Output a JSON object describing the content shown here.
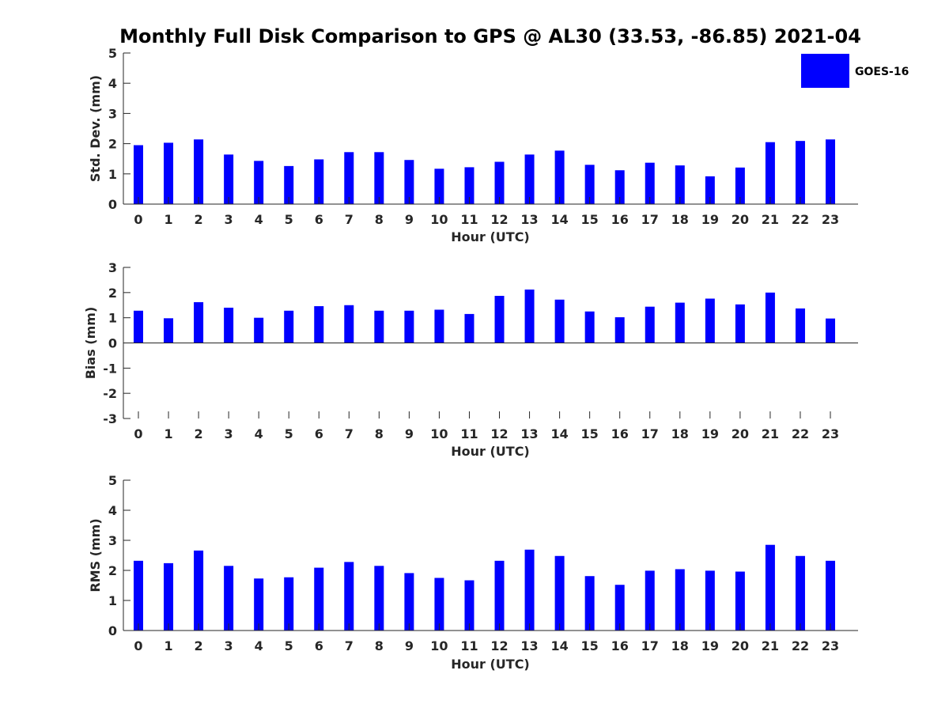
{
  "colors": {
    "bar": "#0000ff",
    "axis": "#262626",
    "background": "#ffffff"
  },
  "chart_data": {
    "type": "bar",
    "title": "Monthly Full Disk Comparison to GPS @ AL30 (33.53, -86.85) 2021-04",
    "legend": {
      "entries": [
        "GOES-16"
      ],
      "placement": "top-right"
    },
    "categories": [
      "0",
      "1",
      "2",
      "3",
      "4",
      "5",
      "6",
      "7",
      "8",
      "9",
      "10",
      "11",
      "12",
      "13",
      "14",
      "15",
      "16",
      "17",
      "18",
      "19",
      "20",
      "21",
      "22",
      "23"
    ],
    "panels": [
      {
        "type": "bar",
        "xlabel": "Hour (UTC)",
        "ylabel": "Std. Dev. (mm)",
        "ylim": [
          0,
          5
        ],
        "yticks": [
          0,
          1,
          2,
          3,
          4,
          5
        ],
        "series": [
          {
            "name": "GOES-16",
            "values": [
              1.95,
              2.03,
              2.14,
              1.64,
              1.43,
              1.26,
              1.48,
              1.72,
              1.72,
              1.46,
              1.17,
              1.22,
              1.4,
              1.64,
              1.77,
              1.3,
              1.12,
              1.37,
              1.28,
              0.92,
              1.21,
              2.05,
              2.09,
              2.14
            ]
          }
        ],
        "grid": false
      },
      {
        "type": "bar",
        "xlabel": "Hour (UTC)",
        "ylabel": "Bias (mm)",
        "ylim": [
          -3,
          3
        ],
        "yticks": [
          -3,
          -2,
          -1,
          0,
          1,
          2,
          3
        ],
        "series": [
          {
            "name": "GOES-16",
            "values": [
              1.28,
              0.98,
              1.62,
              1.4,
              1.0,
              1.28,
              1.46,
              1.5,
              1.28,
              1.28,
              1.32,
              1.15,
              1.87,
              2.12,
              1.72,
              1.25,
              1.02,
              1.44,
              1.6,
              1.76,
              1.53,
              2.0,
              1.37,
              0.97
            ]
          }
        ],
        "grid": false
      },
      {
        "type": "bar",
        "xlabel": "Hour (UTC)",
        "ylabel": "RMS (mm)",
        "ylim": [
          0,
          5
        ],
        "yticks": [
          0,
          1,
          2,
          3,
          4,
          5
        ],
        "series": [
          {
            "name": "GOES-16",
            "values": [
              2.32,
              2.24,
              2.66,
              2.15,
              1.73,
              1.77,
              2.09,
              2.28,
              2.15,
              1.91,
              1.75,
              1.67,
              2.32,
              2.69,
              2.48,
              1.81,
              1.52,
              1.99,
              2.04,
              1.99,
              1.96,
              2.85,
              2.48,
              2.32
            ]
          }
        ],
        "grid": false
      }
    ]
  }
}
